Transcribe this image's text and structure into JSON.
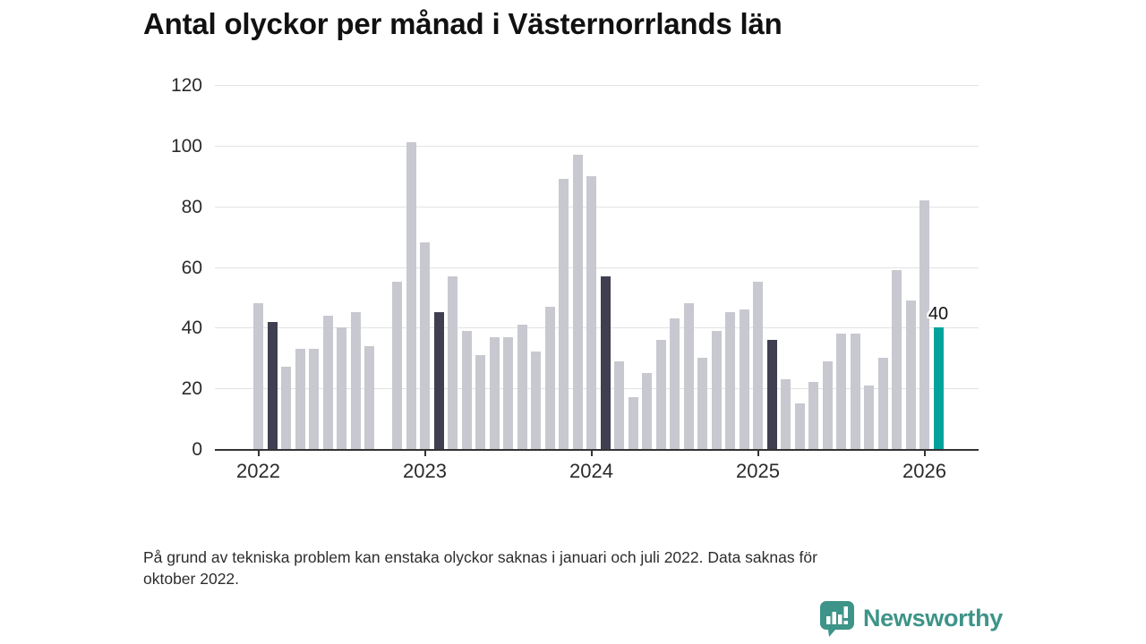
{
  "title": "Antal olyckor per månad i Västernorrlands län",
  "footnote_lines": [
    "På grund av tekniska problem kan enstaka olyckor saknas i januari och juli 2022. Data saknas för",
    "oktober 2022."
  ],
  "logo": {
    "brand": "Newsworthy"
  },
  "chart_data": {
    "type": "bar",
    "title": "Antal olyckor per månad i Västernorrlands län",
    "xlabel": "",
    "ylabel": "",
    "ylim": [
      0,
      120
    ],
    "y_ticks": [
      0,
      20,
      40,
      60,
      80,
      100,
      120
    ],
    "x_tick_labels": [
      "2022",
      "2023",
      "2024",
      "2025",
      "2026"
    ],
    "grid": "horizontal",
    "legend": "none",
    "note": "value null = data missing (oktober 2022); highlight dark = februari tidigare år; highlight teal = senaste månaden",
    "colors": {
      "bar_default": "#c8c8d0",
      "bar_dark": "#3f3f51",
      "bar_teal": "#00a49c",
      "grid": "#e3e3e6",
      "axis": "#333333"
    },
    "annotations": [
      {
        "month": "2026-02",
        "text": "40"
      }
    ],
    "points": [
      {
        "month": "2022-01",
        "value": 48
      },
      {
        "month": "2022-02",
        "value": 42,
        "highlight": "dark"
      },
      {
        "month": "2022-03",
        "value": 27
      },
      {
        "month": "2022-04",
        "value": 33
      },
      {
        "month": "2022-05",
        "value": 33
      },
      {
        "month": "2022-06",
        "value": 44
      },
      {
        "month": "2022-07",
        "value": 40
      },
      {
        "month": "2022-08",
        "value": 45
      },
      {
        "month": "2022-09",
        "value": 34
      },
      {
        "month": "2022-10",
        "value": null
      },
      {
        "month": "2022-11",
        "value": 55
      },
      {
        "month": "2022-12",
        "value": 101
      },
      {
        "month": "2023-01",
        "value": 68
      },
      {
        "month": "2023-02",
        "value": 45,
        "highlight": "dark"
      },
      {
        "month": "2023-03",
        "value": 57
      },
      {
        "month": "2023-04",
        "value": 39
      },
      {
        "month": "2023-05",
        "value": 31
      },
      {
        "month": "2023-06",
        "value": 37
      },
      {
        "month": "2023-07",
        "value": 37
      },
      {
        "month": "2023-08",
        "value": 41
      },
      {
        "month": "2023-09",
        "value": 32
      },
      {
        "month": "2023-10",
        "value": 47
      },
      {
        "month": "2023-11",
        "value": 89
      },
      {
        "month": "2023-12",
        "value": 97
      },
      {
        "month": "2024-01",
        "value": 90
      },
      {
        "month": "2024-02",
        "value": 57,
        "highlight": "dark"
      },
      {
        "month": "2024-03",
        "value": 29
      },
      {
        "month": "2024-04",
        "value": 17
      },
      {
        "month": "2024-05",
        "value": 25
      },
      {
        "month": "2024-06",
        "value": 36
      },
      {
        "month": "2024-07",
        "value": 43
      },
      {
        "month": "2024-08",
        "value": 48
      },
      {
        "month": "2024-09",
        "value": 30
      },
      {
        "month": "2024-10",
        "value": 39
      },
      {
        "month": "2024-11",
        "value": 45
      },
      {
        "month": "2024-12",
        "value": 46
      },
      {
        "month": "2025-01",
        "value": 55
      },
      {
        "month": "2025-02",
        "value": 36,
        "highlight": "dark"
      },
      {
        "month": "2025-03",
        "value": 23
      },
      {
        "month": "2025-04",
        "value": 15
      },
      {
        "month": "2025-05",
        "value": 22
      },
      {
        "month": "2025-06",
        "value": 29
      },
      {
        "month": "2025-07",
        "value": 38
      },
      {
        "month": "2025-08",
        "value": 38
      },
      {
        "month": "2025-09",
        "value": 21
      },
      {
        "month": "2025-10",
        "value": 30
      },
      {
        "month": "2025-11",
        "value": 59
      },
      {
        "month": "2025-12",
        "value": 49
      },
      {
        "month": "2026-01",
        "value": 82
      },
      {
        "month": "2026-02",
        "value": 40,
        "highlight": "teal"
      }
    ]
  }
}
